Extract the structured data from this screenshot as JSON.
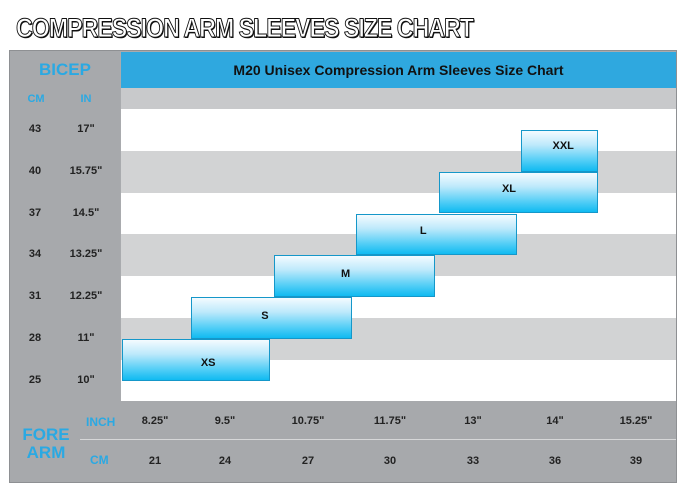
{
  "page_title": "COMPRESSION ARM SLEEVES SIZE CHART",
  "colors": {
    "accent": "#2aa9e3",
    "header_blue": "#2fa8df",
    "grey": "#a7a9ac",
    "light_grey": "#d2d3d4",
    "white": "#ffffff"
  },
  "chart_data": {
    "type": "table",
    "title": "M20 Unisex Compression Arm Sleeves Size Chart",
    "bicep": {
      "title": "BICEP",
      "unit_cm": "CM",
      "unit_in": "IN",
      "rows": [
        {
          "cm": "43",
          "in": "17ʺ"
        },
        {
          "cm": "40",
          "in": "15.75ʺ"
        },
        {
          "cm": "37",
          "in": "14.5ʺ"
        },
        {
          "cm": "34",
          "in": "13.25ʺ"
        },
        {
          "cm": "31",
          "in": "12.25ʺ"
        },
        {
          "cm": "28",
          "in": "11ʺ"
        },
        {
          "cm": "25",
          "in": "10ʺ"
        }
      ]
    },
    "forearm": {
      "title_line1": "FORE",
      "title_line2": "ARM",
      "unit_inch": "INCH",
      "unit_cm": "CM",
      "inch": [
        "8.25ʺ",
        "9.5ʺ",
        "10.75ʺ",
        "11.75ʺ",
        "13ʺ",
        "14ʺ",
        "15.25ʺ"
      ],
      "cm": [
        "21",
        "24",
        "27",
        "30",
        "33",
        "36",
        "39"
      ]
    },
    "sizes": [
      {
        "label": "XS",
        "forearm_cm": [
          21,
          27
        ],
        "bicep_cm": [
          25,
          28
        ]
      },
      {
        "label": "S",
        "forearm_cm": [
          24,
          30
        ],
        "bicep_cm": [
          28,
          31
        ]
      },
      {
        "label": "M",
        "forearm_cm": [
          27,
          33
        ],
        "bicep_cm": [
          31,
          34
        ]
      },
      {
        "label": "L",
        "forearm_cm": [
          30,
          36
        ],
        "bicep_cm": [
          34,
          37
        ]
      },
      {
        "label": "XL",
        "forearm_cm": [
          33,
          39
        ],
        "bicep_cm": [
          37,
          40
        ]
      },
      {
        "label": "XXL",
        "forearm_cm": [
          36,
          39
        ],
        "bicep_cm": [
          40,
          43
        ]
      }
    ]
  }
}
